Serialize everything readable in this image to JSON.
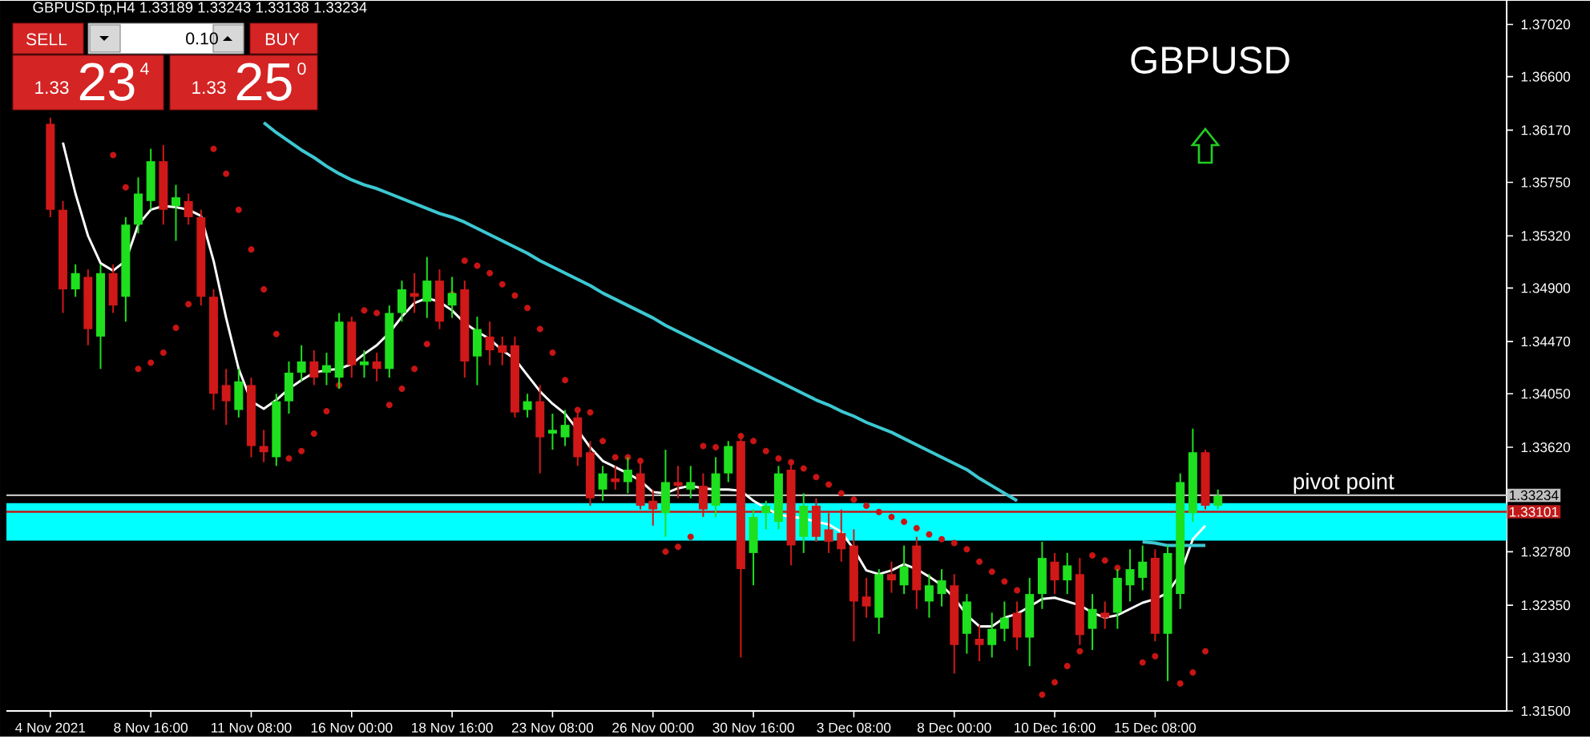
{
  "chart_data": {
    "type": "candlestick",
    "title": "GBPUSD",
    "subtitle": "GBPUSD.tp,H4  1.33189 1.33243 1.33138 1.33234",
    "categories": [
      "4 Nov 2021",
      null,
      null,
      null,
      null,
      null,
      null,
      null,
      "8 Nov 16:00",
      null,
      null,
      null,
      null,
      null,
      null,
      null,
      "11 Nov 08:00",
      null,
      null,
      null,
      null,
      null,
      null,
      null,
      "16 Nov 00:00",
      null,
      null,
      null,
      null,
      null,
      null,
      null,
      "18 Nov 16:00",
      null,
      null,
      null,
      null,
      null,
      null,
      null,
      "23 Nov 08:00",
      null,
      null,
      null,
      null,
      null,
      null,
      null,
      "26 Nov 00:00",
      null,
      null,
      null,
      null,
      null,
      null,
      null,
      "30 Nov 16:00",
      null,
      null,
      null,
      null,
      null,
      null,
      null,
      "3 Dec 08:00",
      null,
      null,
      null,
      null,
      null,
      null,
      null,
      "8 Dec 00:00",
      null,
      null,
      null,
      null,
      null,
      null,
      null,
      "10 Dec 16:00",
      null,
      null,
      null,
      null,
      null,
      null,
      null,
      "15 Dec 08:00",
      null,
      null,
      null,
      null,
      null
    ],
    "ohlc": [
      [
        1.3622,
        1.3627,
        1.3547,
        1.3553
      ],
      [
        1.3553,
        1.356,
        1.347,
        1.3489
      ],
      [
        1.3489,
        1.3509,
        1.3483,
        1.3502
      ],
      [
        1.3499,
        1.3505,
        1.3444,
        1.3457
      ],
      [
        1.3451,
        1.3509,
        1.3425,
        1.3502
      ],
      [
        1.3502,
        1.3509,
        1.347,
        1.3476
      ],
      [
        1.3483,
        1.3547,
        1.3463,
        1.3541
      ],
      [
        1.3541,
        1.3579,
        1.3534,
        1.3566
      ],
      [
        1.356,
        1.3602,
        1.3553,
        1.3592
      ],
      [
        1.3592,
        1.3605,
        1.3541,
        1.3553
      ],
      [
        1.3556,
        1.3573,
        1.3528,
        1.3563
      ],
      [
        1.356,
        1.3566,
        1.3541,
        1.3547
      ],
      [
        1.3547,
        1.3553,
        1.3476,
        1.3483
      ],
      [
        1.3483,
        1.3489,
        1.3392,
        1.3405
      ],
      [
        1.3412,
        1.3425,
        1.338,
        1.3399
      ],
      [
        1.3392,
        1.3425,
        1.3386,
        1.3415
      ],
      [
        1.3412,
        1.3418,
        1.3354,
        1.3363
      ],
      [
        1.3363,
        1.3376,
        1.335,
        1.3358
      ],
      [
        1.3354,
        1.3405,
        1.3347,
        1.3399
      ],
      [
        1.3399,
        1.3431,
        1.3389,
        1.3422
      ],
      [
        1.3422,
        1.3444,
        1.3415,
        1.3431
      ],
      [
        1.3431,
        1.344,
        1.3412,
        1.3418
      ],
      [
        1.3422,
        1.3438,
        1.3412,
        1.3428
      ],
      [
        1.3418,
        1.347,
        1.3409,
        1.3463
      ],
      [
        1.3463,
        1.3467,
        1.3418,
        1.3428
      ],
      [
        1.3428,
        1.344,
        1.3418,
        1.3431
      ],
      [
        1.3431,
        1.3438,
        1.3415,
        1.3425
      ],
      [
        1.3425,
        1.3476,
        1.3418,
        1.347
      ],
      [
        1.347,
        1.3496,
        1.3463,
        1.3489
      ],
      [
        1.3486,
        1.3502,
        1.347,
        1.3483
      ],
      [
        1.3479,
        1.3515,
        1.3466,
        1.3496
      ],
      [
        1.3496,
        1.3505,
        1.3457,
        1.3463
      ],
      [
        1.3476,
        1.3499,
        1.3466,
        1.3486
      ],
      [
        1.3489,
        1.3496,
        1.3418,
        1.3431
      ],
      [
        1.3435,
        1.3467,
        1.3412,
        1.3457
      ],
      [
        1.3451,
        1.3463,
        1.3428,
        1.344
      ],
      [
        1.3444,
        1.3451,
        1.3428,
        1.3438
      ],
      [
        1.3444,
        1.3451,
        1.3386,
        1.339
      ],
      [
        1.3392,
        1.3405,
        1.3386,
        1.3399
      ],
      [
        1.3399,
        1.3412,
        1.3341,
        1.337
      ],
      [
        1.3373,
        1.3389,
        1.336,
        1.3376
      ],
      [
        1.337,
        1.3392,
        1.3363,
        1.338
      ],
      [
        1.3386,
        1.3392,
        1.3347,
        1.3354
      ],
      [
        1.3358,
        1.3367,
        1.3315,
        1.3321
      ],
      [
        1.3328,
        1.3347,
        1.3319,
        1.3341
      ],
      [
        1.3337,
        1.3347,
        1.3328,
        1.3334
      ],
      [
        1.3334,
        1.3354,
        1.3325,
        1.3344
      ],
      [
        1.3341,
        1.335,
        1.3312,
        1.3315
      ],
      [
        1.3319,
        1.3328,
        1.3299,
        1.3312
      ],
      [
        1.3309,
        1.336,
        1.329,
        1.3334
      ],
      [
        1.3334,
        1.3347,
        1.3321,
        1.3331
      ],
      [
        1.3328,
        1.3347,
        1.3321,
        1.3334
      ],
      [
        1.3331,
        1.3341,
        1.3306,
        1.3312
      ],
      [
        1.3315,
        1.3354,
        1.3306,
        1.3341
      ],
      [
        1.3341,
        1.3367,
        1.3334,
        1.3363
      ],
      [
        1.3367,
        1.3373,
        1.3193,
        1.3264
      ],
      [
        1.3277,
        1.3312,
        1.3251,
        1.3306
      ],
      [
        1.3309,
        1.3319,
        1.3296,
        1.3315
      ],
      [
        1.3302,
        1.3347,
        1.3296,
        1.3341
      ],
      [
        1.3344,
        1.335,
        1.3267,
        1.3283
      ],
      [
        1.329,
        1.3325,
        1.3277,
        1.3315
      ],
      [
        1.3315,
        1.3321,
        1.3286,
        1.329
      ],
      [
        1.3296,
        1.3309,
        1.3277,
        1.3286
      ],
      [
        1.3293,
        1.3312,
        1.327,
        1.328
      ],
      [
        1.3283,
        1.3296,
        1.3206,
        1.3238
      ],
      [
        1.3242,
        1.3257,
        1.3225,
        1.3234
      ],
      [
        1.3225,
        1.3264,
        1.3212,
        1.326
      ],
      [
        1.326,
        1.327,
        1.3245,
        1.3255
      ],
      [
        1.3251,
        1.3283,
        1.3244,
        1.3266
      ],
      [
        1.3283,
        1.329,
        1.3232,
        1.3247
      ],
      [
        1.3238,
        1.326,
        1.3225,
        1.3251
      ],
      [
        1.3244,
        1.3264,
        1.3234,
        1.3255
      ],
      [
        1.3251,
        1.326,
        1.318,
        1.3203
      ],
      [
        1.3212,
        1.3244,
        1.3196,
        1.3238
      ],
      [
        1.3208,
        1.3219,
        1.319,
        1.3203
      ],
      [
        1.3203,
        1.3229,
        1.3193,
        1.3216
      ],
      [
        1.3216,
        1.3238,
        1.3206,
        1.3225
      ],
      [
        1.3229,
        1.3238,
        1.3199,
        1.3209
      ],
      [
        1.3209,
        1.3257,
        1.3186,
        1.3244
      ],
      [
        1.3244,
        1.3286,
        1.3232,
        1.3273
      ],
      [
        1.327,
        1.3277,
        1.3244,
        1.3255
      ],
      [
        1.3255,
        1.3277,
        1.3244,
        1.3267
      ],
      [
        1.326,
        1.3273,
        1.3203,
        1.3211
      ],
      [
        1.3216,
        1.3244,
        1.3199,
        1.3232
      ],
      [
        1.3229,
        1.3238,
        1.3216,
        1.3225
      ],
      [
        1.3229,
        1.3264,
        1.3216,
        1.3257
      ],
      [
        1.3251,
        1.328,
        1.3238,
        1.3264
      ],
      [
        1.3257,
        1.3283,
        1.3247,
        1.327
      ],
      [
        1.3273,
        1.328,
        1.3206,
        1.3212
      ],
      [
        1.3212,
        1.3283,
        1.3174,
        1.3277
      ],
      [
        1.3244,
        1.3341,
        1.3232,
        1.3334
      ],
      [
        1.3309,
        1.3377,
        1.3302,
        1.3358
      ],
      [
        1.3358,
        1.336,
        1.3312,
        1.3315
      ],
      [
        1.3315,
        1.3328,
        1.3312,
        1.3323
      ]
    ],
    "colors": [
      "#d01818",
      "#d01818",
      "#1ee01e",
      "#d01818",
      "#1ee01e",
      "#d01818",
      "#1ee01e",
      "#1ee01e",
      "#1ee01e",
      "#d01818",
      "#1ee01e",
      "#d01818",
      "#d01818",
      "#d01818",
      "#d01818",
      "#1ee01e",
      "#d01818",
      "#d01818",
      "#1ee01e",
      "#1ee01e",
      "#1ee01e",
      "#d01818",
      "#1ee01e",
      "#1ee01e",
      "#d01818",
      "#1ee01e",
      "#d01818",
      "#1ee01e",
      "#1ee01e",
      "#d01818",
      "#1ee01e",
      "#d01818",
      "#1ee01e",
      "#d01818",
      "#1ee01e",
      "#d01818",
      "#d01818",
      "#d01818",
      "#1ee01e",
      "#d01818",
      "#1ee01e",
      "#1ee01e",
      "#d01818",
      "#d01818",
      "#1ee01e",
      "#d01818",
      "#1ee01e",
      "#d01818",
      "#d01818",
      "#1ee01e",
      "#d01818",
      "#1ee01e",
      "#d01818",
      "#1ee01e",
      "#1ee01e",
      "#d01818",
      "#1ee01e",
      "#1ee01e",
      "#1ee01e",
      "#d01818",
      "#1ee01e",
      "#d01818",
      "#d01818",
      "#d01818",
      "#d01818",
      "#d01818",
      "#1ee01e",
      "#d01818",
      "#1ee01e",
      "#d01818",
      "#1ee01e",
      "#1ee01e",
      "#d01818",
      "#1ee01e",
      "#d01818",
      "#1ee01e",
      "#1ee01e",
      "#d01818",
      "#1ee01e",
      "#1ee01e",
      "#d01818",
      "#1ee01e",
      "#d01818",
      "#1ee01e",
      "#d01818",
      "#1ee01e",
      "#1ee01e",
      "#1ee01e",
      "#d01818",
      "#1ee01e",
      "#1ee01e",
      "#1ee01e",
      "#d01818",
      "#1ee01e"
    ],
    "series": [
      {
        "type": "line",
        "color": "#ffffff",
        "values": [
          null,
          1.3607,
          1.3566,
          1.3532,
          1.351,
          1.3504,
          1.3512,
          1.3541,
          1.3553,
          1.3556,
          1.3555,
          1.3553,
          1.3548,
          1.3512,
          1.3466,
          1.3425,
          1.3399,
          1.3393,
          1.34,
          1.3409,
          1.3416,
          1.3422,
          1.3424,
          1.3425,
          1.3429,
          1.3437,
          1.3444,
          1.3454,
          1.3467,
          1.3478,
          1.3482,
          1.3479,
          1.3472,
          1.3462,
          1.3455,
          1.3449,
          1.344,
          1.3433,
          1.342,
          1.3407,
          1.3397,
          1.3389,
          1.3376,
          1.3362,
          1.3351,
          1.3346,
          1.3341,
          1.3335,
          1.3326,
          1.3325,
          1.3329,
          1.3331,
          1.3329,
          1.3328,
          1.3328,
          1.3327,
          1.3319,
          1.3313,
          1.3308,
          1.3306,
          1.3305,
          1.3302,
          1.33,
          1.3294,
          1.328,
          1.3263,
          1.326,
          1.3263,
          1.3268,
          1.3264,
          1.3258,
          1.3251,
          1.3241,
          1.3227,
          1.3218,
          1.3218,
          1.3225,
          1.3228,
          1.3234,
          1.324,
          1.3241,
          1.3238,
          1.3235,
          1.3229,
          1.3225,
          1.3227,
          1.3232,
          1.3237,
          1.324,
          1.3245,
          1.326,
          1.3288,
          1.3299,
          null
        ]
      },
      {
        "type": "line",
        "color": "#3cc8d2",
        "values": [
          null,
          null,
          null,
          null,
          null,
          null,
          null,
          null,
          null,
          null,
          null,
          null,
          null,
          null,
          null,
          null,
          null,
          1.3623,
          1.3615,
          1.3608,
          1.3601,
          1.3595,
          1.3588,
          1.3582,
          1.3577,
          1.3573,
          1.357,
          1.3566,
          1.3562,
          1.3558,
          1.3554,
          1.355,
          1.3547,
          1.3543,
          1.3538,
          1.3533,
          1.3528,
          1.3523,
          1.3518,
          1.3512,
          1.3507,
          1.3502,
          1.3497,
          1.3492,
          1.3486,
          1.3481,
          1.3476,
          1.3471,
          1.3466,
          1.346,
          1.3455,
          1.345,
          1.3445,
          1.344,
          1.3435,
          1.343,
          1.3425,
          1.342,
          1.3415,
          1.341,
          1.3405,
          1.34,
          1.3396,
          1.3391,
          1.3387,
          1.3382,
          1.3378,
          1.3374,
          1.3369,
          1.3364,
          1.3359,
          1.3354,
          1.3349,
          1.3344,
          1.3337,
          1.3331,
          1.3325,
          1.3319,
          null,
          null,
          null,
          null,
          null,
          null,
          null,
          null,
          null,
          1.3286,
          1.3285,
          1.3283,
          1.3283,
          1.3283,
          1.3283,
          null
        ]
      },
      {
        "type": "scatter",
        "color": "#c81414",
        "marker": "circle",
        "values": [
          null,
          null,
          null,
          null,
          null,
          1.3597,
          1.3571,
          1.3425,
          1.343,
          1.3438,
          1.3458,
          1.3477,
          null,
          1.3602,
          1.3582,
          1.3553,
          1.3521,
          1.3489,
          1.3453,
          1.3353,
          1.3359,
          1.3373,
          1.3391,
          1.3412,
          null,
          1.3472,
          1.347,
          1.3396,
          1.3409,
          1.3425,
          1.3445,
          null,
          1.3485,
          1.3512,
          1.3508,
          1.3502,
          1.3493,
          1.3484,
          1.3474,
          1.3457,
          1.3438,
          1.3416,
          1.3392,
          1.339,
          1.3367,
          1.3354,
          1.3354,
          1.3351,
          null,
          1.3278,
          1.3282,
          1.329,
          1.3363,
          1.3362,
          null,
          1.3371,
          1.3367,
          1.3359,
          1.3353,
          1.335,
          1.3345,
          1.3338,
          1.3332,
          1.3325,
          1.332,
          1.3315,
          1.331,
          1.3306,
          1.3302,
          1.3297,
          1.3292,
          1.3288,
          1.3285,
          1.328,
          1.327,
          1.3262,
          1.3254,
          1.3247,
          null,
          1.3163,
          1.3173,
          1.3186,
          1.3198,
          1.3275,
          1.3271,
          1.3265,
          null,
          1.3189,
          1.3194,
          null,
          1.3172,
          1.3181,
          1.3198,
          null
        ]
      }
    ],
    "ylim": [
      1.315,
      1.3721
    ],
    "yticks": [
      {
        "value": 1.3702,
        "label": "1.37020"
      },
      {
        "value": 1.366,
        "label": "1.36600"
      },
      {
        "value": 1.3617,
        "label": "1.36170"
      },
      {
        "value": 1.3575,
        "label": "1.35750"
      },
      {
        "value": 1.3532,
        "label": "1.35320"
      },
      {
        "value": 1.349,
        "label": "1.34900"
      },
      {
        "value": 1.3447,
        "label": "1.34470"
      },
      {
        "value": 1.3405,
        "label": "1.34050"
      },
      {
        "value": 1.3362,
        "label": "1.33620"
      },
      {
        "value": 1.3278,
        "label": "1.32780"
      },
      {
        "value": 1.3235,
        "label": "1.32350"
      },
      {
        "value": 1.3193,
        "label": "1.31930"
      },
      {
        "value": 1.315,
        "label": "1.31500"
      }
    ],
    "bands": [
      {
        "axis": "y",
        "from": 1.3287,
        "to": 1.3317,
        "color": "#00ffff"
      }
    ],
    "ref_lines": [
      {
        "axis": "y",
        "value": 1.33234,
        "label": "1.33234",
        "color": "#c0c0c0"
      },
      {
        "axis": "y",
        "value": 1.33101,
        "label": "1.33101",
        "color": "#c01818"
      }
    ],
    "annotations": [
      "SELL",
      "0.10",
      "BUY",
      "1.33",
      "23",
      "4",
      "1.33",
      "25",
      "0",
      {
        "text": "pivot point",
        "y": 1.33234
      }
    ]
  }
}
